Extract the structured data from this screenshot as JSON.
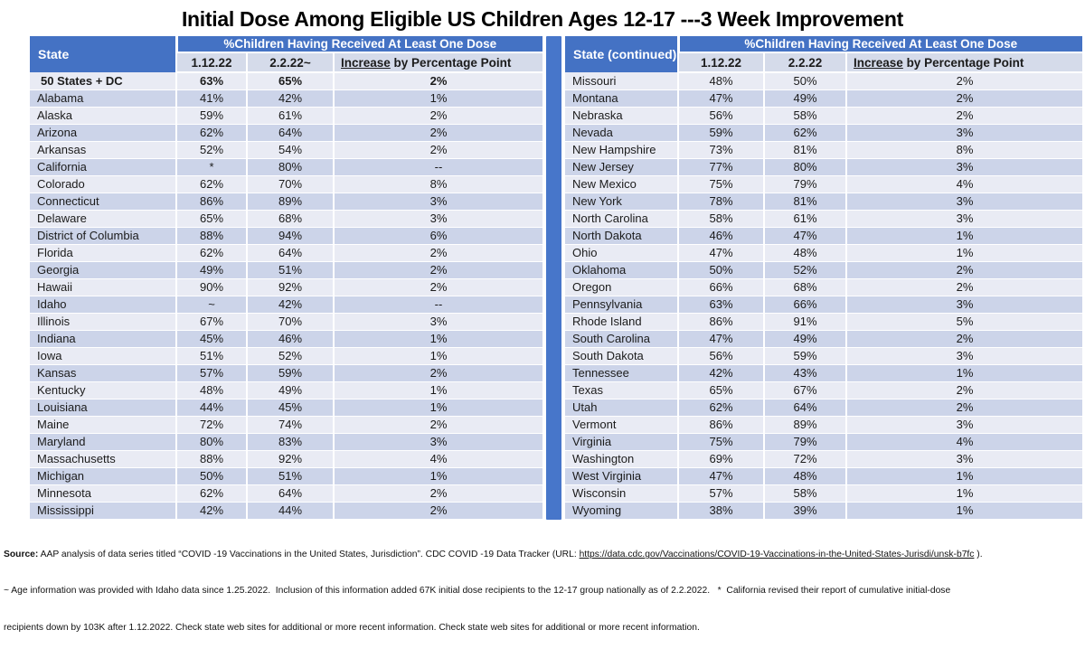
{
  "title": "Initial Dose Among Eligible US Children Ages 12-17 ---3 Week Improvement",
  "colors": {
    "header_blue": "#4472C4",
    "divider_blue": "#4776CA",
    "band_light": "#E9EBF4",
    "band_dark": "#CCD4E9",
    "subheader_bg": "#D5DBEA",
    "text": "#1b1b1b"
  },
  "tables": [
    {
      "state_header": "State",
      "group_header": "%Children Having Received At Least One Dose",
      "date1": "1.12.22",
      "date2": "2.2.22~",
      "increase_word": "Increase",
      "increase_rest": " by Percentage Point",
      "rows": [
        {
          "state": "50 States + DC",
          "d1": "63%",
          "d2": "65%",
          "inc": "2%",
          "bold": true
        },
        {
          "state": "Alabama",
          "d1": "41%",
          "d2": "42%",
          "inc": "1%"
        },
        {
          "state": "Alaska",
          "d1": "59%",
          "d2": "61%",
          "inc": "2%"
        },
        {
          "state": "Arizona",
          "d1": "62%",
          "d2": "64%",
          "inc": "2%"
        },
        {
          "state": "Arkansas",
          "d1": "52%",
          "d2": "54%",
          "inc": "2%"
        },
        {
          "state": "California",
          "d1": "*",
          "d2": "80%",
          "inc": "--"
        },
        {
          "state": "Colorado",
          "d1": "62%",
          "d2": "70%",
          "inc": "8%"
        },
        {
          "state": "Connecticut",
          "d1": "86%",
          "d2": "89%",
          "inc": "3%"
        },
        {
          "state": "Delaware",
          "d1": "65%",
          "d2": "68%",
          "inc": "3%"
        },
        {
          "state": "District of Columbia",
          "d1": "88%",
          "d2": "94%",
          "inc": "6%"
        },
        {
          "state": "Florida",
          "d1": "62%",
          "d2": "64%",
          "inc": "2%"
        },
        {
          "state": "Georgia",
          "d1": "49%",
          "d2": "51%",
          "inc": "2%"
        },
        {
          "state": "Hawaii",
          "d1": "90%",
          "d2": "92%",
          "inc": "2%"
        },
        {
          "state": "Idaho",
          "d1": "~",
          "d2": "42%",
          "inc": "--"
        },
        {
          "state": "Illinois",
          "d1": "67%",
          "d2": "70%",
          "inc": "3%"
        },
        {
          "state": "Indiana",
          "d1": "45%",
          "d2": "46%",
          "inc": "1%"
        },
        {
          "state": "Iowa",
          "d1": "51%",
          "d2": "52%",
          "inc": "1%"
        },
        {
          "state": "Kansas",
          "d1": "57%",
          "d2": "59%",
          "inc": "2%"
        },
        {
          "state": "Kentucky",
          "d1": "48%",
          "d2": "49%",
          "inc": "1%"
        },
        {
          "state": "Louisiana",
          "d1": "44%",
          "d2": "45%",
          "inc": "1%"
        },
        {
          "state": "Maine",
          "d1": "72%",
          "d2": "74%",
          "inc": "2%"
        },
        {
          "state": "Maryland",
          "d1": "80%",
          "d2": "83%",
          "inc": "3%"
        },
        {
          "state": "Massachusetts",
          "d1": "88%",
          "d2": "92%",
          "inc": "4%"
        },
        {
          "state": "Michigan",
          "d1": "50%",
          "d2": "51%",
          "inc": "1%"
        },
        {
          "state": "Minnesota",
          "d1": "62%",
          "d2": "64%",
          "inc": "2%"
        },
        {
          "state": "Mississippi",
          "d1": "42%",
          "d2": "44%",
          "inc": "2%"
        }
      ]
    },
    {
      "state_header": "State (continued)",
      "group_header": "%Children Having Received At Least One Dose",
      "date1": "1.12.22",
      "date2": "2.2.22",
      "increase_word": "Increase",
      "increase_rest": " by Percentage Point",
      "rows": [
        {
          "state": "Missouri",
          "d1": "48%",
          "d2": "50%",
          "inc": "2%"
        },
        {
          "state": "Montana",
          "d1": "47%",
          "d2": "49%",
          "inc": "2%"
        },
        {
          "state": "Nebraska",
          "d1": "56%",
          "d2": "58%",
          "inc": "2%"
        },
        {
          "state": "Nevada",
          "d1": "59%",
          "d2": "62%",
          "inc": "3%"
        },
        {
          "state": "New Hampshire",
          "d1": "73%",
          "d2": "81%",
          "inc": "8%"
        },
        {
          "state": "New Jersey",
          "d1": "77%",
          "d2": "80%",
          "inc": "3%"
        },
        {
          "state": "New Mexico",
          "d1": "75%",
          "d2": "79%",
          "inc": "4%"
        },
        {
          "state": "New York",
          "d1": "78%",
          "d2": "81%",
          "inc": "3%"
        },
        {
          "state": "North Carolina",
          "d1": "58%",
          "d2": "61%",
          "inc": "3%"
        },
        {
          "state": "North Dakota",
          "d1": "46%",
          "d2": "47%",
          "inc": "1%"
        },
        {
          "state": "Ohio",
          "d1": "47%",
          "d2": "48%",
          "inc": "1%"
        },
        {
          "state": "Oklahoma",
          "d1": "50%",
          "d2": "52%",
          "inc": "2%"
        },
        {
          "state": "Oregon",
          "d1": "66%",
          "d2": "68%",
          "inc": "2%"
        },
        {
          "state": "Pennsylvania",
          "d1": "63%",
          "d2": "66%",
          "inc": "3%"
        },
        {
          "state": "Rhode Island",
          "d1": "86%",
          "d2": "91%",
          "inc": "5%"
        },
        {
          "state": "South Carolina",
          "d1": "47%",
          "d2": "49%",
          "inc": "2%"
        },
        {
          "state": "South Dakota",
          "d1": "56%",
          "d2": "59%",
          "inc": "3%"
        },
        {
          "state": "Tennessee",
          "d1": "42%",
          "d2": "43%",
          "inc": "1%"
        },
        {
          "state": "Texas",
          "d1": "65%",
          "d2": "67%",
          "inc": "2%"
        },
        {
          "state": "Utah",
          "d1": "62%",
          "d2": "64%",
          "inc": "2%"
        },
        {
          "state": "Vermont",
          "d1": "86%",
          "d2": "89%",
          "inc": "3%"
        },
        {
          "state": "Virginia",
          "d1": "75%",
          "d2": "79%",
          "inc": "4%"
        },
        {
          "state": "Washington",
          "d1": "69%",
          "d2": "72%",
          "inc": "3%"
        },
        {
          "state": "West Virginia",
          "d1": "47%",
          "d2": "48%",
          "inc": "1%"
        },
        {
          "state": "Wisconsin",
          "d1": "57%",
          "d2": "58%",
          "inc": "1%"
        },
        {
          "state": "Wyoming",
          "d1": "38%",
          "d2": "39%",
          "inc": "1%"
        }
      ]
    }
  ],
  "footer": {
    "source_label": "Source:",
    "line1_pre": " AAP analysis of data series titled “COVID -19 Vaccinations in the United States, Jurisdiction”. CDC COVID -19 Data Tracker (URL: ",
    "line1_url": "https://data.cdc.gov/Vaccinations/COVID-19-Vaccinations-in-the-United-States-Jurisdi/unsk-b7fc",
    "line1_post": " ).",
    "line2": "~ Age information was provided with Idaho data since 1.25.2022.  Inclusion of this information added 67K initial dose recipients to the 12-17 group nationally as of 2.2.2022.   *  California revised their report of cumulative initial-dose",
    "line3": "recipients down by 103K after 1.12.2022. Check state web sites for additional or more recent information. Check state web sites for additional or more recent information."
  }
}
